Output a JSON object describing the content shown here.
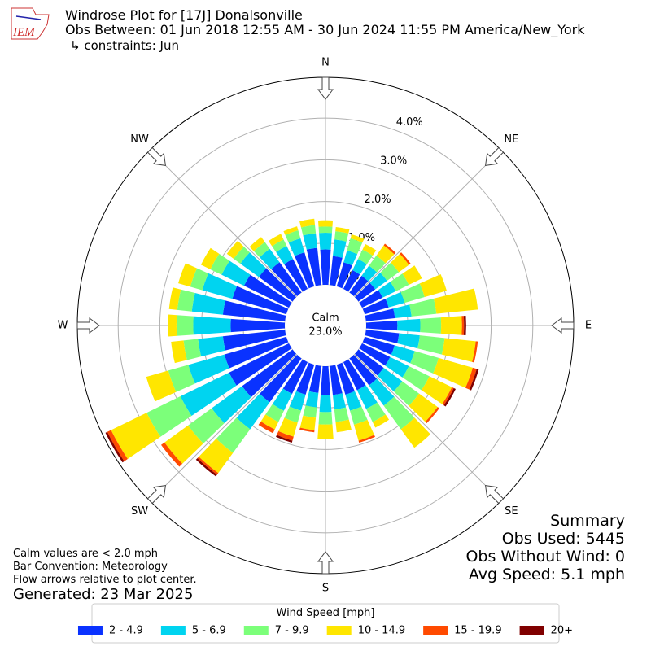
{
  "chart_data": {
    "type": "windrose",
    "title": "Windrose Plot for [17J] Donalsonville",
    "subtitle": "Obs Between: 01 Jun 2018 12:55 AM - 30 Jun 2024 11:55 PM America/New_York",
    "constraints": "↳ constraints: Jun",
    "logo": "IEM",
    "x": [
      0,
      10,
      20,
      30,
      40,
      50,
      60,
      70,
      80,
      90,
      100,
      110,
      120,
      130,
      140,
      150,
      160,
      170,
      180,
      190,
      200,
      210,
      220,
      230,
      240,
      250,
      260,
      270,
      280,
      290,
      300,
      310,
      320,
      330,
      340,
      350
    ],
    "series": [
      {
        "name": "2 - 4.9",
        "color": "#0a32ff",
        "values": [
          0.85,
          0.7,
          0.6,
          0.5,
          0.5,
          0.5,
          0.55,
          0.6,
          0.7,
          0.75,
          0.8,
          0.75,
          0.75,
          0.75,
          0.8,
          0.75,
          0.75,
          0.7,
          0.7,
          0.65,
          0.75,
          0.85,
          1.3,
          1.5,
          1.6,
          1.55,
          1.5,
          1.3,
          1.5,
          1.35,
          1.2,
          1.0,
          0.9,
          0.8,
          0.85,
          0.9
        ]
      },
      {
        "name": "5 - 6.9",
        "color": "#00d4f0",
        "values": [
          0.4,
          0.4,
          0.3,
          0.3,
          0.3,
          0.35,
          0.35,
          0.4,
          0.4,
          0.55,
          0.5,
          0.5,
          0.5,
          0.55,
          0.6,
          0.5,
          0.4,
          0.35,
          0.4,
          0.35,
          0.4,
          0.45,
          0.8,
          0.9,
          1.3,
          0.9,
          0.6,
          0.9,
          0.75,
          0.75,
          0.6,
          0.55,
          0.4,
          0.35,
          0.35,
          0.35
        ]
      },
      {
        "name": "7 - 9.9",
        "color": "#7cff7a",
        "values": [
          0.15,
          0.2,
          0.3,
          0.25,
          0.3,
          0.35,
          0.35,
          0.5,
          0.6,
          0.5,
          0.6,
          0.6,
          0.55,
          0.5,
          0.7,
          0.35,
          0.35,
          0.3,
          0.3,
          0.25,
          0.3,
          0.3,
          0.7,
          0.7,
          0.9,
          0.5,
          0.35,
          0.4,
          0.35,
          0.3,
          0.3,
          0.2,
          0.2,
          0.17,
          0.2,
          0.2
        ]
      },
      {
        "name": "10 - 14.9",
        "color": "#ffe600",
        "values": [
          0.15,
          0.1,
          0.1,
          0.15,
          0.3,
          0.3,
          0.35,
          0.55,
          1.0,
          0.5,
          0.75,
          0.85,
          0.6,
          0.55,
          0.55,
          0.15,
          0.4,
          0.25,
          0.35,
          0.3,
          0.35,
          0.2,
          0.6,
          0.7,
          0.95,
          0.55,
          0.3,
          0.2,
          0.2,
          0.3,
          0.25,
          0.2,
          0.15,
          0.15,
          0.1,
          0.15
        ]
      },
      {
        "name": "15 - 19.9",
        "color": "#ff4a00",
        "values": [
          0,
          0,
          0,
          0,
          0.05,
          0.05,
          0,
          0,
          0,
          0.05,
          0.05,
          0.1,
          0.05,
          0.05,
          0,
          0,
          0.05,
          0,
          0,
          0.05,
          0.1,
          0.1,
          0.05,
          0.1,
          0.1,
          0,
          0,
          0,
          0,
          0,
          0,
          0,
          0,
          0,
          0,
          0
        ]
      },
      {
        "name": "20+",
        "color": "#800000",
        "values": [
          0,
          0,
          0,
          0,
          0,
          0,
          0,
          0,
          0,
          0.05,
          0,
          0.05,
          0.05,
          0,
          0,
          0,
          0,
          0,
          0,
          0,
          0.05,
          0,
          0.05,
          0,
          0.05,
          0,
          0,
          0,
          0,
          0,
          0,
          0,
          0,
          0,
          0,
          0
        ]
      }
    ],
    "ylim": [
      0,
      4.98
    ],
    "yticks": [
      {
        "value": 0,
        "label": "0.0%"
      },
      {
        "value": 1,
        "label": "1.0%"
      },
      {
        "value": 2,
        "label": "2.0%"
      },
      {
        "value": 3,
        "label": "3.0%"
      },
      {
        "value": 4,
        "label": "4.0%"
      }
    ],
    "compass_labels": [
      "N",
      "NE",
      "E",
      "SE",
      "S",
      "SW",
      "W",
      "NW"
    ],
    "calm": {
      "label": "Calm",
      "value": 23.0,
      "value_label": "23.0%"
    },
    "legend_title": "Wind Speed [mph]",
    "summary": [
      "Summary",
      "Obs Used: 5445",
      "Obs Without Wind: 0",
      "Avg Speed: 5.1 mph"
    ],
    "notes": [
      "Calm values are < 2.0 mph",
      "Bar Convention: Meteorology",
      "Flow arrows relative to plot center."
    ],
    "generated": "Generated: 23 Mar 2025",
    "grid": true
  }
}
